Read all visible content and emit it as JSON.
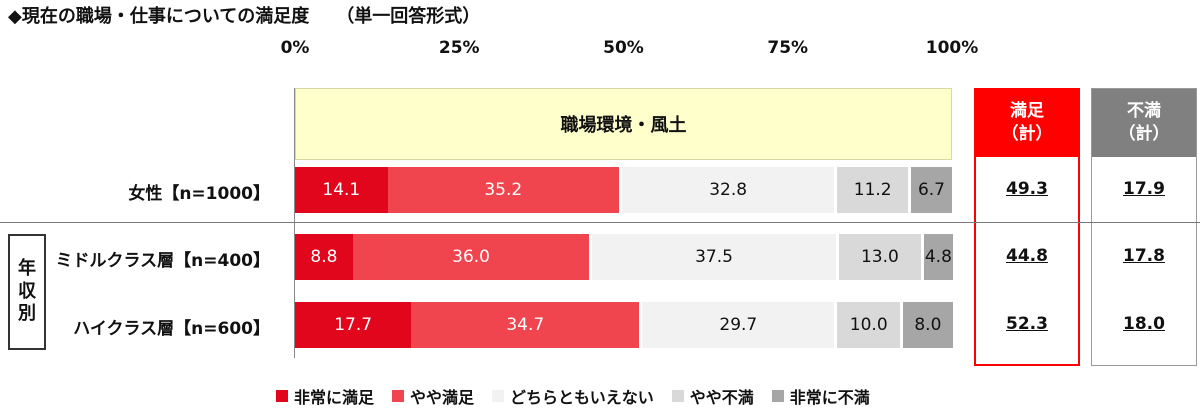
{
  "title": "◆現在の職場・仕事についての満足度　　（単一回答形式）",
  "section_label": "職場環境・風土",
  "group_label": [
    "年",
    "収",
    "別"
  ],
  "summary_headers": [
    {
      "line1": "満足",
      "line2": "（計）",
      "color": "#ff0000"
    },
    {
      "line1": "不満",
      "line2": "（計）",
      "color": "#808080"
    }
  ],
  "colors": {
    "very_satisfied": "#e2061c",
    "somewhat_satisfied": "#f0444f",
    "neutral": "#f2f2f2",
    "somewhat_dissatisfied": "#d9d9d9",
    "very_dissatisfied": "#a6a6a6",
    "satisfied_box": "#ff0000"
  },
  "chart_data": {
    "type": "bar",
    "orientation": "horizontal-stacked-100",
    "title": "◆現在の職場・仕事についての満足度　　（単一回答形式）",
    "xlim": [
      0,
      100
    ],
    "x_ticks": [
      "0%",
      "25%",
      "50%",
      "75%",
      "100%"
    ],
    "categories": [
      "女性【n=1000】",
      "ミドルクラス層【n=400】",
      "ハイクラス層【n=600】"
    ],
    "series": [
      {
        "name": "非常に満足",
        "values": [
          14.1,
          8.8,
          17.7
        ]
      },
      {
        "name": "やや満足",
        "values": [
          35.2,
          36.0,
          34.7
        ]
      },
      {
        "name": "どちらともいえない",
        "values": [
          32.8,
          37.5,
          29.7
        ]
      },
      {
        "name": "やや不満",
        "values": [
          11.2,
          13.0,
          10.0
        ]
      },
      {
        "name": "非常に不満",
        "values": [
          6.7,
          4.8,
          8.0
        ]
      }
    ],
    "satisfied_total": [
      "49.3",
      "44.8",
      "52.3"
    ],
    "dissatisfied_total": [
      "17.9",
      "17.8",
      "18.0"
    ],
    "legend_position": "bottom"
  }
}
